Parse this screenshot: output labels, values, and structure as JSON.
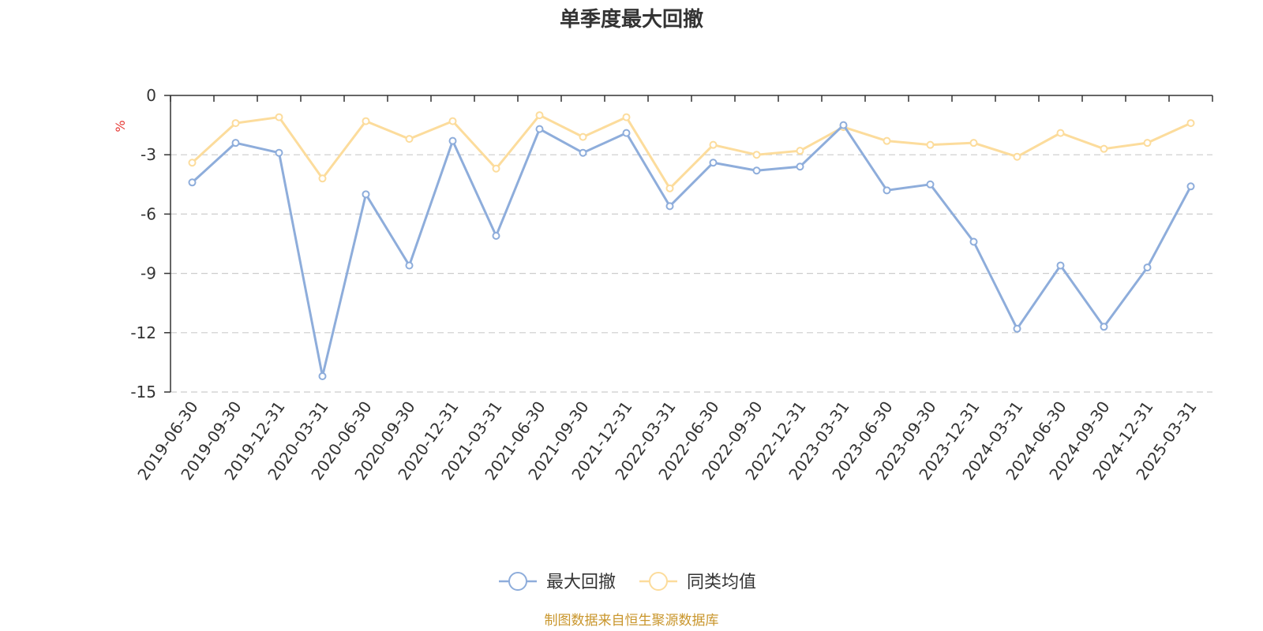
{
  "chart_data": {
    "type": "line",
    "title": "单季度最大回撤",
    "ylabel": "%",
    "ylim": [
      -15,
      0
    ],
    "yticks": [
      "0",
      "-3",
      "-6",
      "-9",
      "-12",
      "-15"
    ],
    "grid": true,
    "legend_position": "bottom-center",
    "categories": [
      "2019-06-30",
      "2019-09-30",
      "2019-12-31",
      "2020-03-31",
      "2020-06-30",
      "2020-09-30",
      "2020-12-31",
      "2021-03-31",
      "2021-06-30",
      "2021-09-30",
      "2021-12-31",
      "2022-03-31",
      "2022-06-30",
      "2022-09-30",
      "2022-12-31",
      "2023-03-31",
      "2023-06-30",
      "2023-09-30",
      "2023-12-31",
      "2024-03-31",
      "2024-06-30",
      "2024-09-30",
      "2024-12-31",
      "2025-03-31"
    ],
    "series": [
      {
        "name": "最大回撤",
        "color": "#8eaddb",
        "values": [
          -4.4,
          -2.4,
          -2.9,
          -14.2,
          -5.0,
          -8.6,
          -2.3,
          -7.1,
          -1.7,
          -2.9,
          -1.9,
          -5.6,
          -3.4,
          -3.8,
          -3.6,
          -1.5,
          -4.8,
          -4.5,
          -7.4,
          -11.8,
          -8.6,
          -11.7,
          -8.7,
          -4.6
        ]
      },
      {
        "name": "同类均值",
        "color": "#fcdc9c",
        "values": [
          -3.4,
          -1.4,
          -1.1,
          -4.2,
          -1.3,
          -2.2,
          -1.3,
          -3.7,
          -1.0,
          -2.1,
          -1.1,
          -4.7,
          -2.5,
          -3.0,
          -2.8,
          -1.6,
          -2.3,
          -2.5,
          -2.4,
          -3.1,
          -1.9,
          -2.7,
          -2.4,
          -1.4
        ]
      }
    ]
  },
  "source_note": "制图数据来自恒生聚源数据库"
}
